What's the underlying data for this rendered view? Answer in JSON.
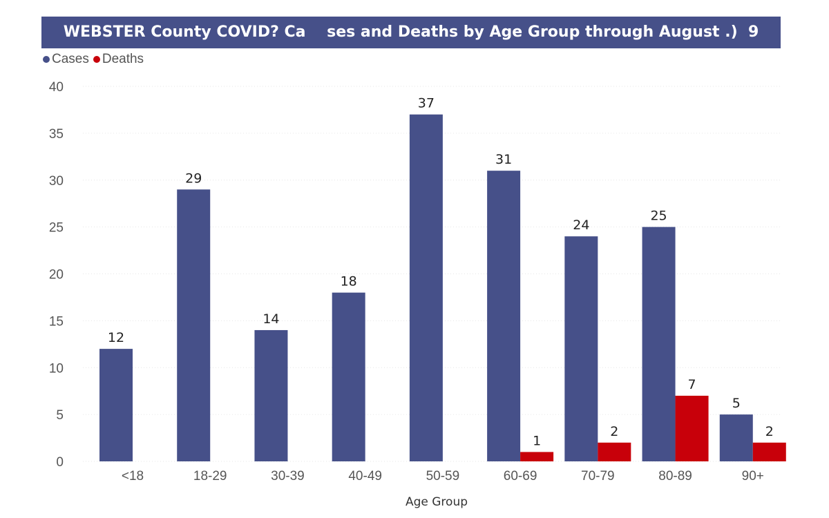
{
  "chart_data": {
    "type": "bar",
    "title": "WEBSTER County COVID? Ca    ses and Deaths by Age Group through August .)  9",
    "categories": [
      "<18",
      "18-29",
      "30-39",
      "40-49",
      "50-59",
      "60-69",
      "70-79",
      "80-89",
      "90+"
    ],
    "series": [
      {
        "name": "Cases",
        "color": "#465089",
        "values": [
          12,
          29,
          14,
          18,
          37,
          31,
          24,
          25,
          5
        ]
      },
      {
        "name": "Deaths",
        "color": "#c8000a",
        "values": [
          null,
          null,
          null,
          null,
          null,
          1,
          2,
          7,
          2
        ]
      }
    ],
    "xlabel": "Age Group",
    "ylabel": "",
    "ylim": [
      0,
      40
    ],
    "yticks": [
      0,
      5,
      10,
      15,
      20,
      25,
      30,
      35,
      40
    ],
    "legend_position": "top-left",
    "grid": true
  }
}
